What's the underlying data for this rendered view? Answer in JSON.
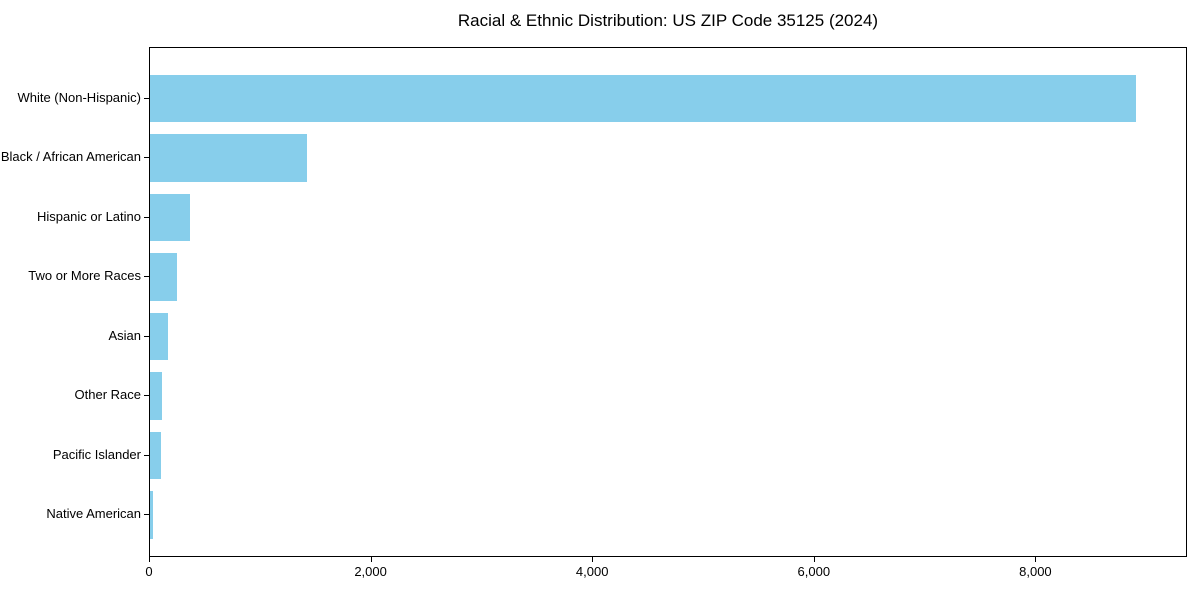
{
  "chart_data": {
    "type": "bar",
    "orientation": "horizontal",
    "title": "Racial & Ethnic Distribution: US ZIP Code 35125 (2024)",
    "categories": [
      "White (Non-Hispanic)",
      "Black / African American",
      "Hispanic or Latino",
      "Two or More Races",
      "Asian",
      "Other Race",
      "Pacific Islander",
      "Native American"
    ],
    "values": [
      8900,
      1415,
      365,
      240,
      160,
      110,
      100,
      30
    ],
    "xlabel": "",
    "ylabel": "",
    "xlim": [
      0,
      9350
    ],
    "x_ticks": [
      0,
      2000,
      4000,
      6000,
      8000
    ],
    "x_tick_labels": [
      "0",
      "2,000",
      "4,000",
      "6,000",
      "8,000"
    ],
    "bar_color": "#87CEEB",
    "axis_color": "#000000",
    "grid": false,
    "legend": null
  }
}
